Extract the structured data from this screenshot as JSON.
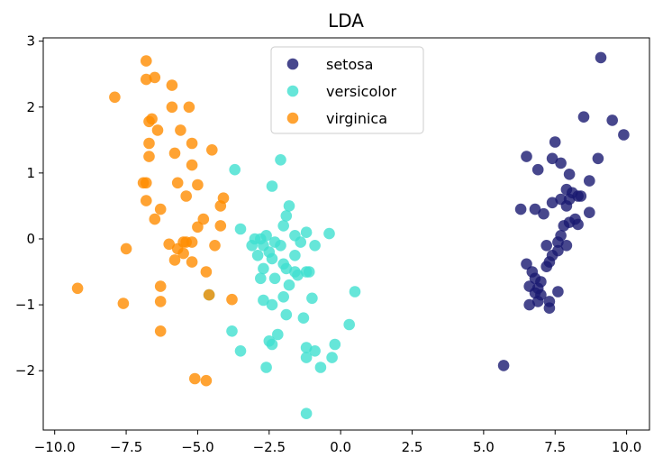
{
  "chart_data": {
    "type": "scatter",
    "title": "LDA",
    "xlabel": "",
    "ylabel": "",
    "xlim": [
      -10.4,
      10.8
    ],
    "ylim": [
      -2.9,
      3.05
    ],
    "xticks": [
      -10.0,
      -7.5,
      -5.0,
      -2.5,
      0.0,
      2.5,
      5.0,
      7.5,
      10.0
    ],
    "xtick_labels": [
      "−10.0",
      "−7.5",
      "−5.0",
      "−2.5",
      "0.0",
      "2.5",
      "5.0",
      "7.5",
      "10.0"
    ],
    "yticks": [
      -2,
      -1,
      0,
      1,
      2,
      3
    ],
    "ytick_labels": [
      "−2",
      "−1",
      "0",
      "1",
      "2",
      "3"
    ],
    "grid": false,
    "legend_position": "top-center",
    "series": [
      {
        "name": "setosa",
        "color": "#191970",
        "points": [
          [
            9.1,
            2.75
          ],
          [
            8.5,
            1.85
          ],
          [
            9.5,
            1.8
          ],
          [
            9.9,
            1.58
          ],
          [
            7.5,
            1.47
          ],
          [
            6.5,
            1.25
          ],
          [
            7.4,
            1.22
          ],
          [
            7.7,
            1.15
          ],
          [
            9.0,
            1.22
          ],
          [
            6.9,
            1.05
          ],
          [
            8.0,
            0.98
          ],
          [
            8.7,
            0.88
          ],
          [
            7.9,
            0.75
          ],
          [
            8.1,
            0.7
          ],
          [
            8.3,
            0.65
          ],
          [
            8.0,
            0.6
          ],
          [
            7.7,
            0.6
          ],
          [
            7.4,
            0.55
          ],
          [
            8.4,
            0.65
          ],
          [
            7.9,
            0.5
          ],
          [
            6.3,
            0.45
          ],
          [
            6.8,
            0.45
          ],
          [
            7.1,
            0.38
          ],
          [
            8.7,
            0.4
          ],
          [
            8.2,
            0.3
          ],
          [
            8.0,
            0.25
          ],
          [
            7.8,
            0.2
          ],
          [
            8.3,
            0.22
          ],
          [
            7.7,
            0.05
          ],
          [
            7.6,
            -0.05
          ],
          [
            7.2,
            -0.1
          ],
          [
            7.9,
            -0.1
          ],
          [
            7.6,
            -0.18
          ],
          [
            7.4,
            -0.25
          ],
          [
            7.3,
            -0.35
          ],
          [
            6.5,
            -0.38
          ],
          [
            7.2,
            -0.42
          ],
          [
            6.7,
            -0.5
          ],
          [
            6.8,
            -0.6
          ],
          [
            7.0,
            -0.65
          ],
          [
            6.6,
            -0.72
          ],
          [
            6.9,
            -0.75
          ],
          [
            6.8,
            -0.82
          ],
          [
            7.0,
            -0.85
          ],
          [
            7.6,
            -0.8
          ],
          [
            6.6,
            -1.0
          ],
          [
            6.9,
            -0.95
          ],
          [
            7.3,
            -0.95
          ],
          [
            7.3,
            -1.05
          ],
          [
            5.7,
            -1.92
          ]
        ]
      },
      {
        "name": "versicolor",
        "color": "#40e0d0",
        "points": [
          [
            -2.1,
            1.2
          ],
          [
            -3.7,
            1.05
          ],
          [
            -2.4,
            0.8
          ],
          [
            -1.8,
            0.5
          ],
          [
            -1.9,
            0.35
          ],
          [
            -2.0,
            0.2
          ],
          [
            -3.5,
            0.15
          ],
          [
            -1.6,
            0.05
          ],
          [
            -1.2,
            0.1
          ],
          [
            -0.4,
            0.08
          ],
          [
            -2.8,
            0.0
          ],
          [
            -2.6,
            0.05
          ],
          [
            -3.0,
            0.0
          ],
          [
            -2.3,
            -0.05
          ],
          [
            -2.7,
            -0.1
          ],
          [
            -2.1,
            -0.1
          ],
          [
            -1.4,
            -0.05
          ],
          [
            -0.9,
            -0.1
          ],
          [
            -2.5,
            -0.2
          ],
          [
            -3.1,
            -0.1
          ],
          [
            -2.9,
            -0.25
          ],
          [
            -1.6,
            -0.25
          ],
          [
            -2.4,
            -0.3
          ],
          [
            -2.0,
            -0.38
          ],
          [
            -2.7,
            -0.45
          ],
          [
            -1.9,
            -0.45
          ],
          [
            -1.6,
            -0.5
          ],
          [
            -1.2,
            -0.5
          ],
          [
            -1.5,
            -0.55
          ],
          [
            -1.1,
            -0.5
          ],
          [
            -2.8,
            -0.6
          ],
          [
            -2.3,
            -0.6
          ],
          [
            -1.8,
            -0.7
          ],
          [
            0.5,
            -0.8
          ],
          [
            -2.0,
            -0.88
          ],
          [
            -1.0,
            -0.9
          ],
          [
            -2.7,
            -0.93
          ],
          [
            -2.4,
            -1.0
          ],
          [
            -1.9,
            -1.15
          ],
          [
            -1.3,
            -1.2
          ],
          [
            0.3,
            -1.3
          ],
          [
            -3.8,
            -1.4
          ],
          [
            -2.2,
            -1.45
          ],
          [
            -2.5,
            -1.55
          ],
          [
            -2.4,
            -1.6
          ],
          [
            -3.5,
            -1.7
          ],
          [
            -1.2,
            -1.65
          ],
          [
            -0.9,
            -1.7
          ],
          [
            -1.2,
            -1.8
          ],
          [
            -0.2,
            -1.6
          ],
          [
            -0.3,
            -1.8
          ],
          [
            -2.6,
            -1.95
          ],
          [
            -0.7,
            -1.95
          ],
          [
            -1.2,
            -2.65
          ],
          [
            -4.6,
            -0.85
          ]
        ]
      },
      {
        "name": "virginica",
        "color": "#ff8c00",
        "points": [
          [
            -6.8,
            2.7
          ],
          [
            -6.8,
            2.42
          ],
          [
            -6.5,
            2.45
          ],
          [
            -5.9,
            2.33
          ],
          [
            -7.9,
            2.15
          ],
          [
            -5.9,
            2.0
          ],
          [
            -5.3,
            2.0
          ],
          [
            -6.6,
            1.82
          ],
          [
            -6.7,
            1.78
          ],
          [
            -6.4,
            1.65
          ],
          [
            -5.6,
            1.65
          ],
          [
            -6.7,
            1.45
          ],
          [
            -5.2,
            1.45
          ],
          [
            -6.7,
            1.25
          ],
          [
            -4.5,
            1.35
          ],
          [
            -5.8,
            1.3
          ],
          [
            -5.2,
            1.12
          ],
          [
            -6.9,
            0.85
          ],
          [
            -6.8,
            0.85
          ],
          [
            -5.7,
            0.85
          ],
          [
            -5.0,
            0.82
          ],
          [
            -5.4,
            0.65
          ],
          [
            -4.1,
            0.62
          ],
          [
            -6.8,
            0.58
          ],
          [
            -6.3,
            0.45
          ],
          [
            -4.2,
            0.5
          ],
          [
            -6.5,
            0.3
          ],
          [
            -4.8,
            0.3
          ],
          [
            -5.0,
            0.18
          ],
          [
            -4.2,
            0.2
          ],
          [
            -6.0,
            -0.08
          ],
          [
            -5.5,
            -0.05
          ],
          [
            -5.4,
            -0.05
          ],
          [
            -5.2,
            -0.05
          ],
          [
            -7.5,
            -0.15
          ],
          [
            -4.4,
            -0.1
          ],
          [
            -5.7,
            -0.15
          ],
          [
            -5.5,
            -0.22
          ],
          [
            -5.8,
            -0.32
          ],
          [
            -5.2,
            -0.35
          ],
          [
            -4.7,
            -0.5
          ],
          [
            -6.3,
            -0.72
          ],
          [
            -9.2,
            -0.75
          ],
          [
            -4.6,
            -0.85
          ],
          [
            -3.8,
            -0.92
          ],
          [
            -7.6,
            -0.98
          ],
          [
            -6.3,
            -0.95
          ],
          [
            -6.3,
            -1.4
          ],
          [
            -5.1,
            -2.12
          ],
          [
            -4.7,
            -2.15
          ]
        ]
      }
    ]
  }
}
